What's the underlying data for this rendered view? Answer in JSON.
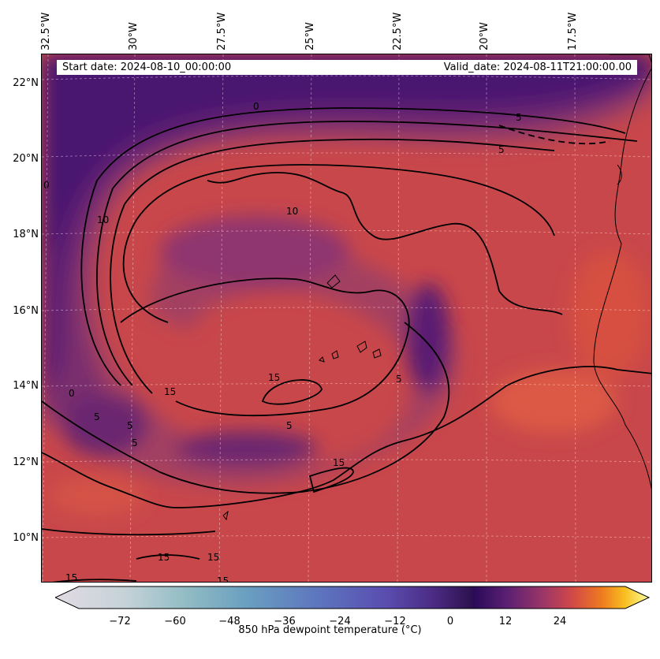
{
  "header": {
    "start_date": "Start date: 2024-08-10_00:00:00",
    "valid_date": "Valid_date: 2024-08-11T21:00:00.00"
  },
  "axes": {
    "longitude_labels": [
      "32.5°W",
      "30°W",
      "27.5°W",
      "25°W",
      "22.5°W",
      "20°W",
      "17.5°W"
    ],
    "latitude_labels": [
      "22°N",
      "20°N",
      "18°N",
      "16°N",
      "14°N",
      "12°N",
      "10°N"
    ]
  },
  "contour_labels": [
    {
      "text": "0"
    },
    {
      "text": "5"
    },
    {
      "text": "5"
    },
    {
      "text": "0"
    },
    {
      "text": "10"
    },
    {
      "text": "10"
    },
    {
      "text": "15"
    },
    {
      "text": "15"
    },
    {
      "text": "5"
    },
    {
      "text": "0"
    },
    {
      "text": "5"
    },
    {
      "text": "5"
    },
    {
      "text": "5"
    },
    {
      "text": "5"
    },
    {
      "text": "15"
    },
    {
      "text": "15"
    },
    {
      "text": "15"
    },
    {
      "text": "15"
    },
    {
      "text": "15"
    }
  ],
  "colorbar": {
    "label": "850 hPa dewpoint temperature ($^\\circ$C)",
    "label_display": "850 hPa dewpoint temperature (°C)",
    "ticks": [
      "−72",
      "−60",
      "−48",
      "−36",
      "−24",
      "−12",
      "0",
      "12",
      "24"
    ],
    "range": [
      -84,
      36
    ],
    "extend": "both"
  },
  "colors": {
    "background_field": "#c8474a",
    "dry_core": "#4a1870",
    "mid_purple": "#7a2e6e",
    "coast": "#000000"
  }
}
